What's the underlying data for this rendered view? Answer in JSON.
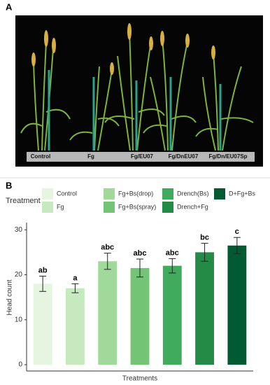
{
  "panel_a": {
    "label": "A",
    "photo_labels": [
      "Control",
      "Fg",
      "Fg/EU07",
      "Fg/DnEU07",
      "Fg/Dn/EU07Sp"
    ]
  },
  "panel_b": {
    "label": "B"
  },
  "chart_data": {
    "type": "bar",
    "legend_title": "Treatment",
    "x_label": "Treatments",
    "y_label": "Head count",
    "categories": [
      "Control",
      "Fg",
      "Fg+Bs(drop)",
      "Fg+Bs(spray)",
      "Drench(Bs)",
      "Drench+Fg",
      "D+Fg+Bs"
    ],
    "values": [
      18,
      17,
      23,
      21.5,
      22,
      25,
      26.5
    ],
    "errors": [
      1.7,
      1,
      1.8,
      2,
      1.6,
      2,
      1.8
    ],
    "letters": [
      "ab",
      "a",
      "abc",
      "abc",
      "abc",
      "bc",
      "c"
    ],
    "colors": [
      "#e5f5e0",
      "#c7e9c0",
      "#a1d99b",
      "#74c476",
      "#41ab5d",
      "#238b45",
      "#005a32"
    ],
    "ylim": [
      -1.4,
      31.6
    ],
    "yticks": [
      0,
      10,
      20,
      30
    ],
    "grid": false
  }
}
